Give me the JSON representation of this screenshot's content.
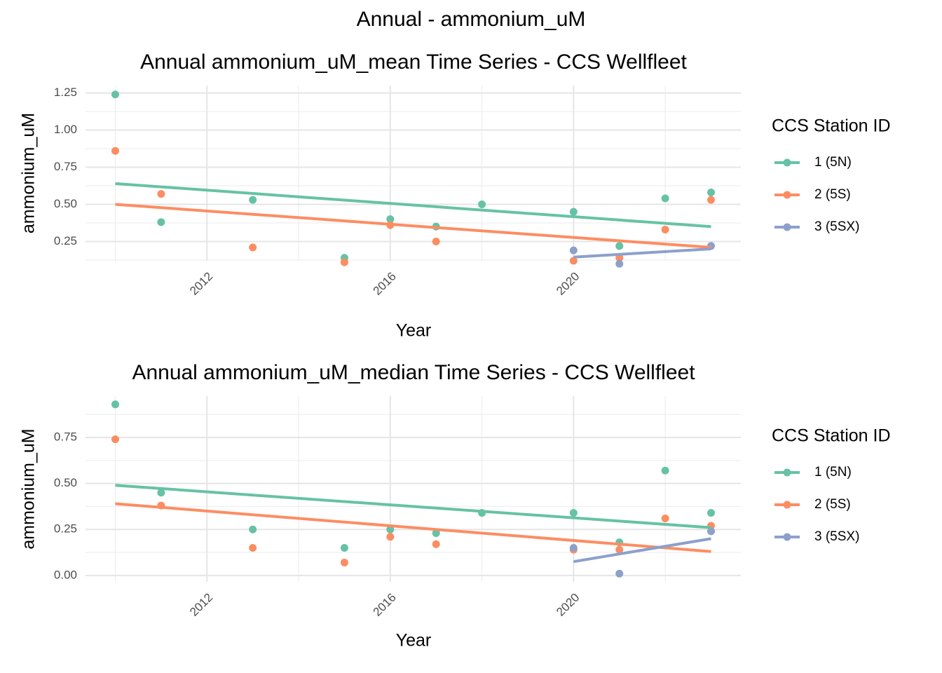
{
  "title": "Annual - ammonium_uM",
  "chart_data": [
    {
      "type": "scatter",
      "title": "Annual ammonium_uM_mean Time Series - CCS Wellfleet",
      "x_label": "Year",
      "y_label": "ammonium_uM",
      "legend_title": "CCS Station ID",
      "xlim": [
        2009.35,
        2023.65
      ],
      "ylim": [
        0.12,
        1.3
      ],
      "xticks": [
        2012,
        2016,
        2020
      ],
      "yticks": [
        0.25,
        {
          "value": 0.5,
          "label": "0.50"
        },
        0.75,
        {
          "value": 1,
          "label": "1.00"
        },
        1.25
      ],
      "grid": true,
      "legend": "right",
      "series": [
        {
          "name": "1 (5N)",
          "color": "#66c2a5",
          "x": [
            2010,
            2011,
            2013,
            2015,
            2016,
            2017,
            2018,
            2020,
            2021,
            2022,
            2023
          ],
          "values": [
            1.24,
            0.38,
            0.53,
            0.14,
            0.4,
            0.35,
            0.5,
            0.45,
            0.22,
            0.54,
            0.58
          ],
          "trend": {
            "x": [
              2010,
              2023
            ],
            "values": [
              0.64,
              0.35
            ]
          }
        },
        {
          "name": "2 (5S)",
          "color": "#fc8d62",
          "x": [
            2010,
            2011,
            2013,
            2015,
            2016,
            2017,
            2020,
            2021,
            2022,
            2023
          ],
          "values": [
            0.86,
            0.57,
            0.21,
            0.11,
            0.36,
            0.25,
            0.12,
            0.14,
            0.33,
            0.53
          ],
          "trend": {
            "x": [
              2010,
              2023
            ],
            "values": [
              0.5,
              0.21
            ]
          }
        },
        {
          "name": "3 (5SX)",
          "color": "#8da0cb",
          "x": [
            2020,
            2021,
            2023
          ],
          "values": [
            0.19,
            0.1,
            0.22
          ],
          "trend": {
            "x": [
              2020,
              2023
            ],
            "values": [
              0.145,
              0.2
            ]
          }
        }
      ]
    },
    {
      "type": "scatter",
      "title": "Annual ammonium_uM_median Time Series - CCS Wellfleet",
      "x_label": "Year",
      "y_label": "ammonium_uM",
      "legend_title": "CCS Station ID",
      "xlim": [
        2009.35,
        2023.65
      ],
      "ylim": [
        -0.035,
        0.975
      ],
      "xticks": [
        2012,
        2016,
        2020
      ],
      "yticks": [
        {
          "value": 0,
          "label": "0.00"
        },
        0.25,
        {
          "value": 0.5,
          "label": "0.50"
        },
        0.75
      ],
      "grid": true,
      "legend": "right",
      "series": [
        {
          "name": "1 (5N)",
          "color": "#66c2a5",
          "x": [
            2010,
            2011,
            2013,
            2015,
            2016,
            2017,
            2018,
            2020,
            2021,
            2022,
            2023
          ],
          "values": [
            0.93,
            0.45,
            0.25,
            0.15,
            0.25,
            0.23,
            0.34,
            0.34,
            0.18,
            0.57,
            0.34
          ],
          "trend": {
            "x": [
              2010,
              2023
            ],
            "values": [
              0.49,
              0.26
            ]
          }
        },
        {
          "name": "2 (5S)",
          "color": "#fc8d62",
          "x": [
            2010,
            2011,
            2013,
            2015,
            2016,
            2017,
            2020,
            2021,
            2022,
            2023
          ],
          "values": [
            0.74,
            0.38,
            0.15,
            0.07,
            0.21,
            0.17,
            0.14,
            0.14,
            0.31,
            0.27
          ],
          "trend": {
            "x": [
              2010,
              2023
            ],
            "values": [
              0.39,
              0.13
            ]
          }
        },
        {
          "name": "3 (5SX)",
          "color": "#8da0cb",
          "x": [
            2020,
            2021,
            2023
          ],
          "values": [
            0.15,
            0.01,
            0.24
          ],
          "trend": {
            "x": [
              2020,
              2023
            ],
            "values": [
              0.075,
              0.2
            ]
          }
        }
      ]
    }
  ]
}
